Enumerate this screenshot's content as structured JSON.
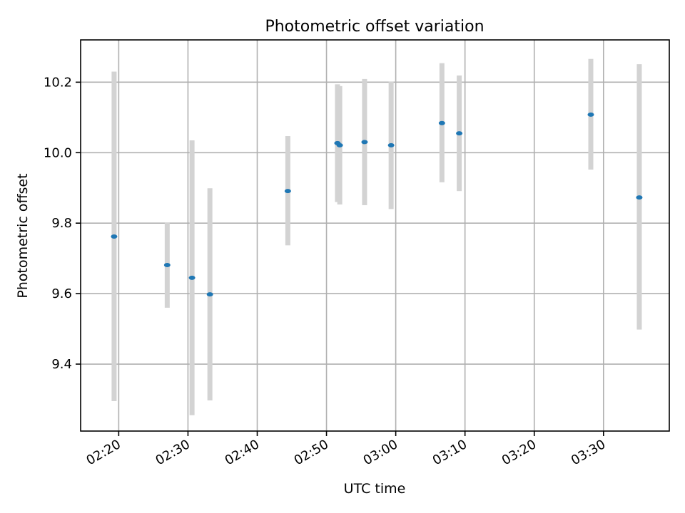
{
  "chart_data": {
    "type": "scatter",
    "title": "Photometric offset variation",
    "xlabel": "UTC time",
    "ylabel": "Photometric offset",
    "x_unit": "time of day (HH:MM)",
    "xlim": [
      "02:14:30",
      "03:39:30"
    ],
    "ylim": [
      9.21,
      10.32
    ],
    "grid": true,
    "x_ticks": [
      "02:20",
      "02:30",
      "02:40",
      "02:50",
      "03:00",
      "03:10",
      "03:20",
      "03:30"
    ],
    "y_ticks": [
      9.4,
      9.6,
      9.8,
      10.0,
      10.2
    ],
    "y_tick_labels": [
      "9.4",
      "9.6",
      "9.8",
      "10.0",
      "10.2"
    ],
    "point_color": "#1f77b4",
    "errorbar_color": "#d3d3d3",
    "series": [
      {
        "points": [
          {
            "x": "02:19:20",
            "y": 9.762,
            "ylow": 9.295,
            "yhigh": 10.23
          },
          {
            "x": "02:27:00",
            "y": 9.681,
            "ylow": 9.56,
            "yhigh": 9.802
          },
          {
            "x": "02:30:35",
            "y": 9.645,
            "ylow": 9.255,
            "yhigh": 10.035
          },
          {
            "x": "02:33:10",
            "y": 9.598,
            "ylow": 9.297,
            "yhigh": 9.899
          },
          {
            "x": "02:44:25",
            "y": 9.891,
            "ylow": 9.737,
            "yhigh": 10.047
          },
          {
            "x": "02:51:35",
            "y": 10.027,
            "ylow": 9.86,
            "yhigh": 10.194
          },
          {
            "x": "02:51:55",
            "y": 10.021,
            "ylow": 9.853,
            "yhigh": 10.189
          },
          {
            "x": "02:55:30",
            "y": 10.03,
            "ylow": 9.851,
            "yhigh": 10.209
          },
          {
            "x": "02:59:20",
            "y": 10.021,
            "ylow": 9.84,
            "yhigh": 10.202
          },
          {
            "x": "03:06:40",
            "y": 10.084,
            "ylow": 9.916,
            "yhigh": 10.254
          },
          {
            "x": "03:09:10",
            "y": 10.055,
            "ylow": 9.891,
            "yhigh": 10.219
          },
          {
            "x": "03:28:10",
            "y": 10.108,
            "ylow": 9.952,
            "yhigh": 10.266
          },
          {
            "x": "03:35:10",
            "y": 9.873,
            "ylow": 9.498,
            "yhigh": 10.251
          }
        ]
      }
    ]
  }
}
